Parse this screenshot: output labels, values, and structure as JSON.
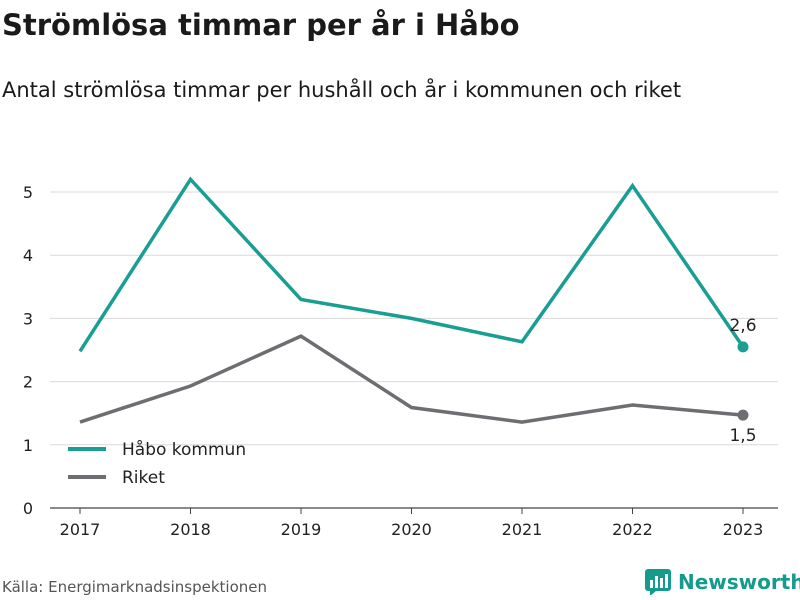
{
  "title": "Strömlösa timmar per år i Håbo",
  "subtitle": "Antal strömlösa timmar per hushåll och år i kommunen och riket",
  "source": "Källa: Energimarknadsinspektionen",
  "brand": {
    "name": "Newsworthy",
    "icon": "bar-chart-icon",
    "color": "#159a8e"
  },
  "chart_data": {
    "type": "line",
    "x": [
      "2017",
      "2018",
      "2019",
      "2020",
      "2021",
      "2022",
      "2023"
    ],
    "yticks": [
      "0",
      "1",
      "2",
      "3",
      "4",
      "5"
    ],
    "ylim": [
      0,
      5.5
    ],
    "grid": true,
    "legend_position": "bottom-left",
    "series": [
      {
        "name": "Håbo kommun",
        "color": "#1a9e93",
        "values": [
          2.48,
          5.2,
          3.3,
          3.0,
          2.63,
          5.1,
          2.55
        ],
        "end_label": "2,6"
      },
      {
        "name": "Riket",
        "color": "#6e6d72",
        "values": [
          1.36,
          1.93,
          2.72,
          1.59,
          1.36,
          1.63,
          1.47
        ],
        "end_label": "1,5"
      }
    ]
  }
}
